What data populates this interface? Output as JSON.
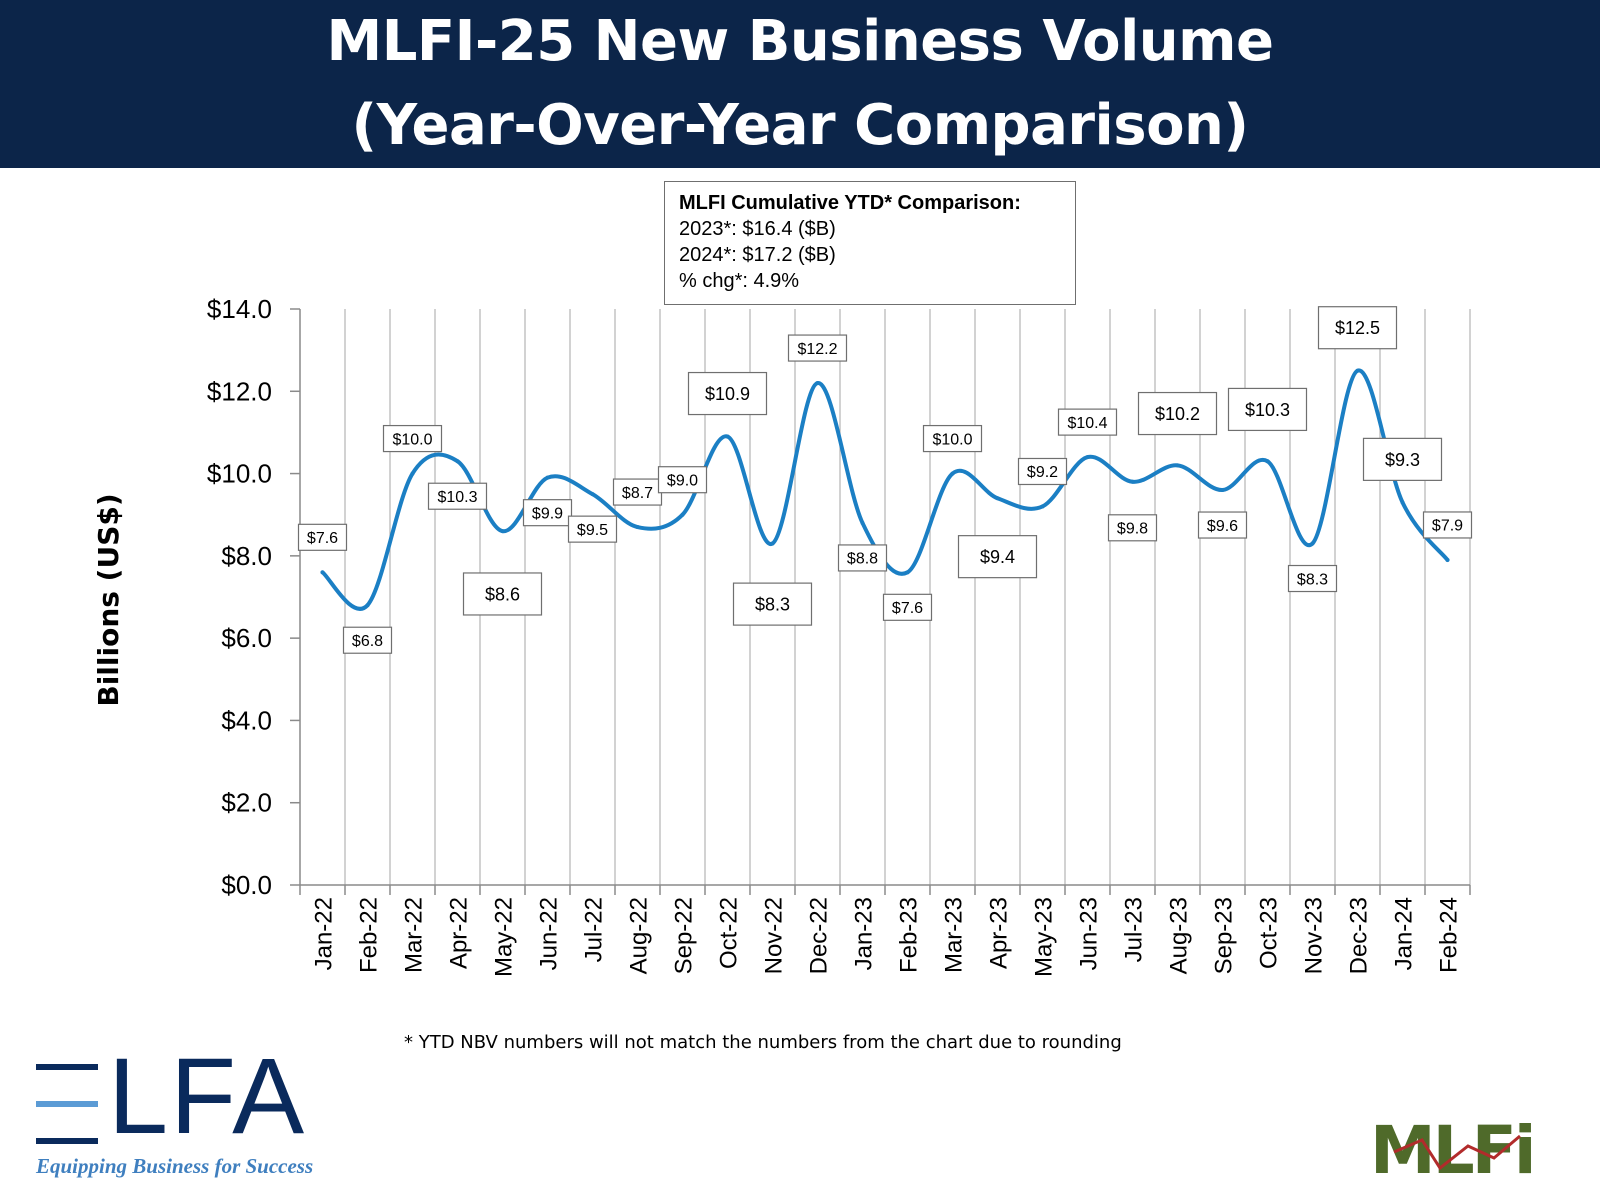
{
  "header": {
    "line1": "MLFI-25 New Business Volume",
    "line2": "(Year-Over-Year Comparison)"
  },
  "ytd_box": {
    "title": "MLFI Cumulative YTD* Comparison:",
    "line1": "2023*: $16.4 ($B)",
    "line2": "2024*: $17.2 ($B)",
    "line3": "% chg*:  4.9%"
  },
  "footnote": "*  YTD NBV numbers will not match the numbers from the chart due to rounding",
  "logos": {
    "elfa_text": "LFA",
    "elfa_tagline": "Equipping Business for Success",
    "mlfi_text": "MLFi"
  },
  "colors": {
    "header_bg": "#0c2549",
    "line": "#1b7fc4",
    "grid": "#b5b5b5",
    "elfa_navy": "#0a2a5c",
    "elfa_blue": "#3f7fbf",
    "mlfi_green": "#4f6a2a"
  },
  "chart_data": {
    "type": "line",
    "title": "",
    "ylabel": "Billions (US$)",
    "xlabel": "",
    "ylim": [
      0,
      14
    ],
    "ytick_step": 2,
    "grid": "vertical",
    "legend": "none",
    "categories": [
      "Jan-22",
      "Feb-22",
      "Mar-22",
      "Apr-22",
      "May-22",
      "Jun-22",
      "Jul-22",
      "Aug-22",
      "Sep-22",
      "Oct-22",
      "Nov-22",
      "Dec-22",
      "Jan-23",
      "Feb-23",
      "Mar-23",
      "Apr-23",
      "May-23",
      "Jun-23",
      "Jul-23",
      "Aug-23",
      "Sep-23",
      "Oct-23",
      "Nov-23",
      "Dec-23",
      "Jan-24",
      "Feb-24"
    ],
    "ytick_labels": [
      "$0.0",
      "$2.0",
      "$4.0",
      "$6.0",
      "$8.0",
      "$10.0",
      "$12.0",
      "$14.0"
    ],
    "series": [
      {
        "values": [
          7.6,
          6.8,
          10.0,
          10.3,
          8.6,
          9.9,
          9.5,
          8.7,
          9.0,
          10.9,
          8.3,
          12.2,
          8.8,
          7.6,
          10.0,
          9.4,
          9.2,
          10.4,
          9.8,
          10.2,
          9.6,
          10.3,
          8.3,
          12.5,
          9.3,
          7.9
        ],
        "labels": [
          "$7.6",
          "$6.8",
          "$10.0",
          "$10.3",
          "$8.6",
          "$9.9",
          "$9.5",
          "$8.7",
          "$9.0",
          "$10.9",
          "$8.3",
          "$12.2",
          "$8.8",
          "$7.6",
          "$10.0",
          "$9.4",
          "$9.2",
          "$10.4",
          "$9.8",
          "$10.2",
          "$9.6",
          "$10.3",
          "$8.3",
          "$12.5",
          "$9.3",
          "$7.9"
        ]
      }
    ]
  }
}
